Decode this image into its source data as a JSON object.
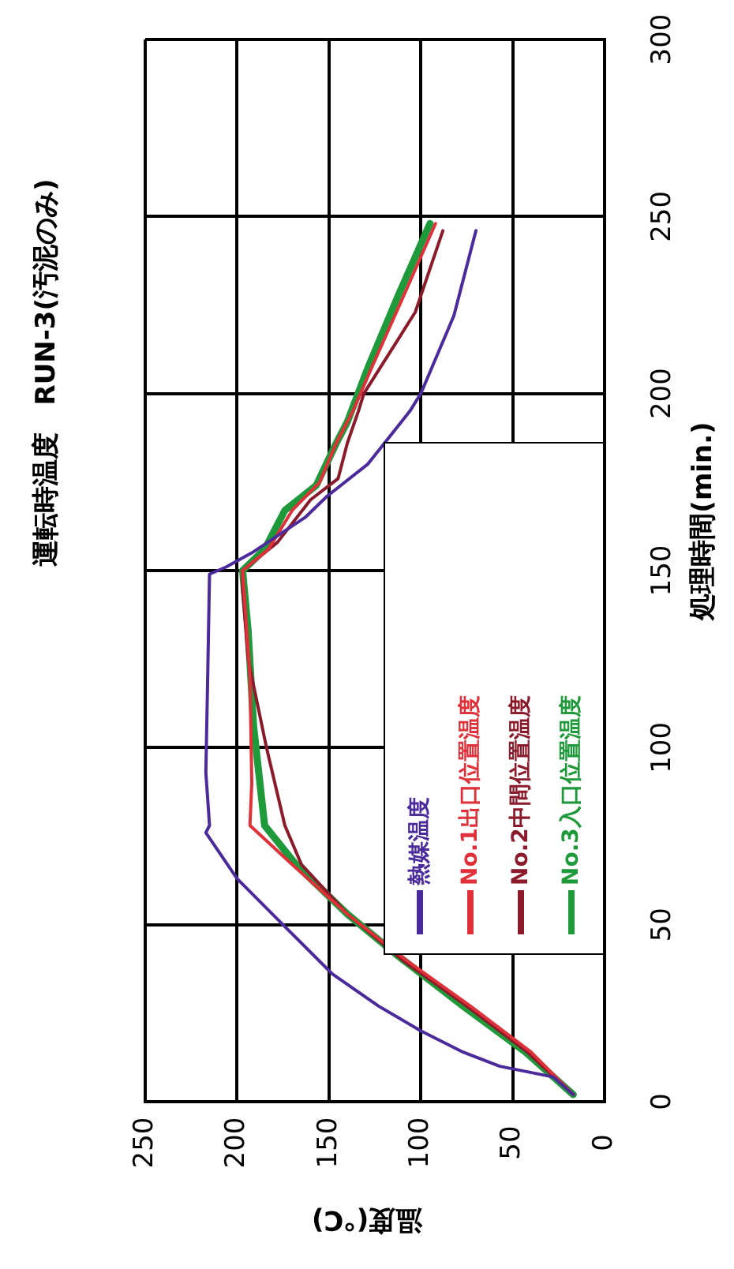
{
  "chart_data": {
    "type": "line",
    "title": "運転時温度　RUN-3(汚泥のみ)",
    "xlabel": "温度(℃)",
    "ylabel": "処理時間(min.)",
    "xlim": [
      250,
      0
    ],
    "xticks": [
      250,
      200,
      150,
      100,
      50,
      0
    ],
    "ylim": [
      0,
      300
    ],
    "yticks": [
      0,
      50,
      100,
      150,
      200,
      250,
      300
    ],
    "grid": true,
    "legend": "right",
    "marker": "none",
    "line_style": "solid",
    "series": [
      {
        "name": "熱媒温度",
        "color": "#4b2a9c",
        "x": [
          17,
          28,
          57,
          77,
          100,
          123,
          148,
          177,
          200,
          217,
          215,
          217,
          216,
          215,
          206,
          192,
          163,
          151,
          129,
          106,
          100,
          82,
          70
        ],
        "values": [
          2,
          7,
          10,
          14,
          20,
          27,
          36,
          51,
          63,
          76,
          78,
          93,
          120,
          149,
          151,
          155,
          165,
          171,
          180,
          195,
          200,
          222,
          246
        ]
      },
      {
        "name": "No.1出口位置温度",
        "color": "#e0303a",
        "x": [
          17,
          40,
          73,
          108,
          140,
          170,
          193,
          192,
          193,
          197,
          183,
          170,
          155,
          146,
          137,
          127,
          109,
          92
        ],
        "values": [
          2,
          14,
          27,
          40,
          53,
          67,
          78,
          90,
          120,
          150,
          156,
          167,
          175,
          186,
          195,
          207,
          228,
          248
        ]
      },
      {
        "name": "No.2中間位置温度",
        "color": "#8b1a2a",
        "x": [
          17,
          42,
          75,
          110,
          140,
          165,
          174,
          184,
          194,
          197,
          197,
          178,
          160,
          145,
          140,
          134,
          131,
          103,
          88
        ],
        "values": [
          2,
          14,
          27,
          40,
          53,
          67,
          78,
          100,
          125,
          145,
          150,
          158,
          170,
          176,
          186,
          195,
          200,
          223,
          246
        ]
      },
      {
        "name": "No.3入口位置温度",
        "color": "#1e9a3a",
        "x": [
          17,
          43,
          77,
          112,
          140,
          168,
          185,
          191,
          194,
          197,
          185,
          174,
          157,
          146,
          140,
          129,
          112,
          95
        ],
        "values": [
          2,
          14,
          27,
          41,
          53,
          67,
          78,
          106,
          133,
          150,
          156,
          167,
          174,
          186,
          192,
          207,
          228,
          248
        ]
      }
    ]
  }
}
